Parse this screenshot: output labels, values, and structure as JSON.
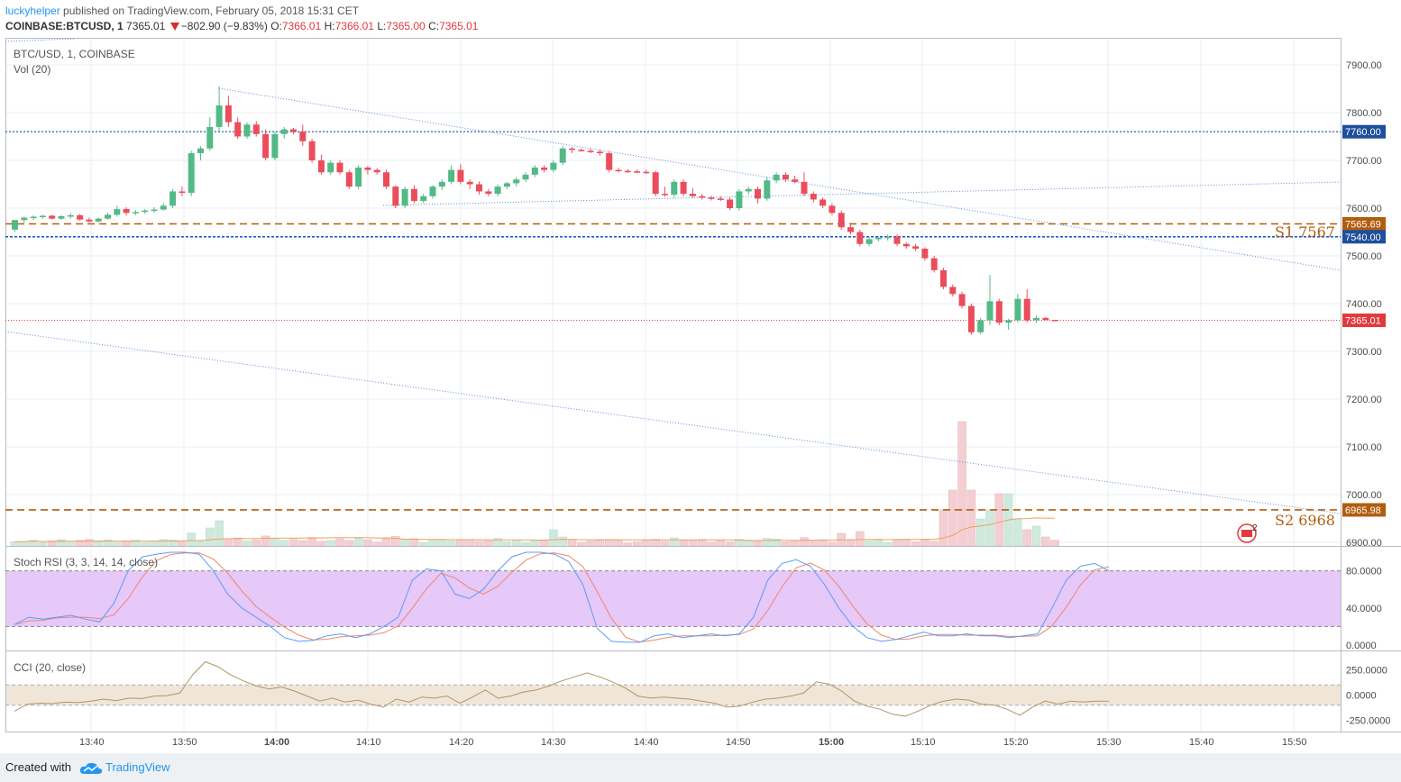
{
  "header": {
    "author": "luckyhelper",
    "published": "published on TradingView.com, February 05, 2018 15:31 CET",
    "symbol": "COINBASE:BTCUSD, 1",
    "last": "7365.01",
    "change": "−802.90 (−9.83%)",
    "o_label": "O:",
    "o": "7366.01",
    "h_label": "H:",
    "h": "7366.01",
    "l_label": "L:",
    "l": "7365.00",
    "c_label": "C:",
    "c": "7365.01"
  },
  "panes": {
    "main_title": "BTC/USD, 1, COINBASE",
    "vol_title": "Vol (20)",
    "stoch_title": "Stoch RSI (3, 3, 14, 14, close)",
    "cci_title": "CCI (20, close)"
  },
  "annotations": {
    "s1": "S1 7567",
    "s2": "S2 6968",
    "h_line_1": "7760.00",
    "h_line_2": "7540.00",
    "last_price_tag": "7365.01",
    "s1_tag": "7565.69",
    "s2_tag": "6965.98",
    "event_badge": "2"
  },
  "colors": {
    "up": "#53b987",
    "down": "#eb4d5c",
    "level_blue": "#1e4e9c",
    "level_orange": "#b25d0e",
    "trend": "#5b8dd6",
    "stoch_band": "#e6c8f9",
    "stoch_k": "#5b9cf6",
    "stoch_d": "#f0876a",
    "cci_line": "#b39464",
    "cci_band": "#f0e6d8"
  },
  "footer": {
    "created": "Created with",
    "brand": "TradingView"
  },
  "chart_data": {
    "type": "candlestick",
    "title": "BTC/USD, 1, COINBASE",
    "x_ticks": [
      "13:40",
      "13:50",
      "14:00",
      "14:10",
      "14:20",
      "14:30",
      "14:40",
      "14:50",
      "15:00",
      "15:10",
      "15:20",
      "15:30",
      "15:40",
      "15:50"
    ],
    "y_ticks": [
      "7900.00",
      "7800.00",
      "7700.00",
      "7600.00",
      "7500.00",
      "7400.00",
      "7300.00",
      "7200.00",
      "7100.00",
      "7000.00",
      "6900.00"
    ],
    "ylim": [
      6895,
      7935
    ],
    "horizontal_levels": [
      {
        "value": 7760,
        "style": "dotted",
        "color": "blue",
        "label": "7760.00"
      },
      {
        "value": 7540,
        "style": "dotted",
        "color": "blue",
        "label": "7540.00"
      },
      {
        "value": 7567,
        "style": "dashed",
        "color": "orange",
        "label": "S1 7567"
      },
      {
        "value": 6968,
        "style": "dashed",
        "color": "orange",
        "label": "S2 6968"
      },
      {
        "value": 7365.01,
        "style": "dotted",
        "color": "red",
        "label": "7365.01"
      }
    ],
    "candles": [
      [
        7555,
        7575,
        7550,
        7575
      ],
      [
        7575,
        7582,
        7570,
        7580
      ],
      [
        7580,
        7585,
        7575,
        7582
      ],
      [
        7582,
        7586,
        7578,
        7584
      ],
      [
        7584,
        7586,
        7576,
        7578
      ],
      [
        7578,
        7585,
        7575,
        7583
      ],
      [
        7583,
        7590,
        7578,
        7585
      ],
      [
        7585,
        7588,
        7574,
        7576
      ],
      [
        7576,
        7580,
        7570,
        7572
      ],
      [
        7572,
        7580,
        7570,
        7578
      ],
      [
        7578,
        7590,
        7576,
        7586
      ],
      [
        7586,
        7605,
        7582,
        7598
      ],
      [
        7598,
        7602,
        7585,
        7590
      ],
      [
        7590,
        7596,
        7585,
        7592
      ],
      [
        7592,
        7598,
        7588,
        7595
      ],
      [
        7595,
        7602,
        7590,
        7597
      ],
      [
        7597,
        7610,
        7595,
        7605
      ],
      [
        7605,
        7640,
        7600,
        7635
      ],
      [
        7635,
        7645,
        7625,
        7632
      ],
      [
        7632,
        7720,
        7625,
        7715
      ],
      [
        7715,
        7730,
        7700,
        7725
      ],
      [
        7725,
        7790,
        7720,
        7770
      ],
      [
        7770,
        7855,
        7760,
        7815
      ],
      [
        7815,
        7835,
        7770,
        7780
      ],
      [
        7780,
        7790,
        7745,
        7750
      ],
      [
        7750,
        7780,
        7745,
        7775
      ],
      [
        7775,
        7782,
        7750,
        7755
      ],
      [
        7755,
        7765,
        7700,
        7705
      ],
      [
        7705,
        7760,
        7700,
        7755
      ],
      [
        7755,
        7770,
        7745,
        7765
      ],
      [
        7765,
        7768,
        7755,
        7760
      ],
      [
        7760,
        7775,
        7730,
        7740
      ],
      [
        7740,
        7745,
        7695,
        7700
      ],
      [
        7700,
        7712,
        7670,
        7675
      ],
      [
        7675,
        7700,
        7670,
        7695
      ],
      [
        7695,
        7700,
        7670,
        7675
      ],
      [
        7675,
        7680,
        7640,
        7645
      ],
      [
        7645,
        7690,
        7640,
        7685
      ],
      [
        7685,
        7688,
        7670,
        7680
      ],
      [
        7680,
        7684,
        7670,
        7675
      ],
      [
        7675,
        7680,
        7640,
        7645
      ],
      [
        7645,
        7648,
        7600,
        7605
      ],
      [
        7605,
        7645,
        7600,
        7640
      ],
      [
        7640,
        7648,
        7610,
        7615
      ],
      [
        7615,
        7630,
        7610,
        7625
      ],
      [
        7625,
        7648,
        7620,
        7645
      ],
      [
        7645,
        7660,
        7638,
        7655
      ],
      [
        7655,
        7690,
        7650,
        7680
      ],
      [
        7680,
        7692,
        7650,
        7655
      ],
      [
        7655,
        7660,
        7640,
        7650
      ],
      [
        7650,
        7656,
        7628,
        7635
      ],
      [
        7635,
        7640,
        7625,
        7630
      ],
      [
        7630,
        7650,
        7625,
        7645
      ],
      [
        7645,
        7655,
        7640,
        7652
      ],
      [
        7652,
        7665,
        7645,
        7660
      ],
      [
        7660,
        7675,
        7655,
        7670
      ],
      [
        7670,
        7690,
        7665,
        7685
      ],
      [
        7685,
        7690,
        7675,
        7680
      ],
      [
        7680,
        7700,
        7675,
        7695
      ],
      [
        7695,
        7730,
        7690,
        7725
      ],
      [
        7725,
        7728,
        7715,
        7722
      ],
      [
        7722,
        7725,
        7718,
        7720
      ],
      [
        7720,
        7726,
        7715,
        7718
      ],
      [
        7718,
        7722,
        7710,
        7715
      ],
      [
        7715,
        7720,
        7675,
        7680
      ],
      [
        7680,
        7684,
        7675,
        7678
      ],
      [
        7678,
        7682,
        7674,
        7677
      ],
      [
        7677,
        7681,
        7673,
        7676
      ],
      [
        7676,
        7680,
        7672,
        7675
      ],
      [
        7675,
        7678,
        7625,
        7630
      ],
      [
        7630,
        7645,
        7624,
        7628
      ],
      [
        7628,
        7660,
        7622,
        7655
      ],
      [
        7655,
        7660,
        7625,
        7630
      ],
      [
        7630,
        7642,
        7622,
        7625
      ],
      [
        7625,
        7630,
        7618,
        7622
      ],
      [
        7622,
        7626,
        7616,
        7620
      ],
      [
        7620,
        7625,
        7615,
        7618
      ],
      [
        7618,
        7622,
        7596,
        7600
      ],
      [
        7600,
        7640,
        7595,
        7635
      ],
      [
        7635,
        7645,
        7628,
        7640
      ],
      [
        7640,
        7645,
        7610,
        7620
      ],
      [
        7620,
        7665,
        7615,
        7658
      ],
      [
        7658,
        7675,
        7652,
        7670
      ],
      [
        7670,
        7675,
        7655,
        7660
      ],
      [
        7660,
        7668,
        7652,
        7655
      ],
      [
        7655,
        7675,
        7625,
        7630
      ],
      [
        7630,
        7635,
        7612,
        7618
      ],
      [
        7618,
        7622,
        7600,
        7605
      ],
      [
        7605,
        7610,
        7585,
        7590
      ],
      [
        7590,
        7595,
        7555,
        7560
      ],
      [
        7560,
        7565,
        7545,
        7550
      ],
      [
        7550,
        7555,
        7520,
        7525
      ],
      [
        7525,
        7540,
        7520,
        7535
      ],
      [
        7535,
        7540,
        7530,
        7538
      ],
      [
        7538,
        7545,
        7532,
        7540
      ],
      [
        7540,
        7545,
        7520,
        7525
      ],
      [
        7525,
        7528,
        7515,
        7520
      ],
      [
        7520,
        7525,
        7510,
        7515
      ],
      [
        7515,
        7518,
        7490,
        7495
      ],
      [
        7495,
        7500,
        7465,
        7470
      ],
      [
        7470,
        7475,
        7430,
        7435
      ],
      [
        7435,
        7440,
        7415,
        7420
      ],
      [
        7420,
        7425,
        7390,
        7395
      ],
      [
        7395,
        7400,
        7335,
        7340
      ],
      [
        7340,
        7370,
        7335,
        7365
      ],
      [
        7365,
        7460,
        7355,
        7405
      ],
      [
        7405,
        7410,
        7355,
        7360
      ],
      [
        7360,
        7368,
        7345,
        7365
      ],
      [
        7365,
        7420,
        7360,
        7410
      ],
      [
        7410,
        7430,
        7360,
        7365
      ],
      [
        7365,
        7375,
        7360,
        7370
      ],
      [
        7370,
        7372,
        7365,
        7366
      ],
      [
        7366,
        7366,
        7365,
        7365
      ]
    ],
    "volume_sma_20": "line",
    "indicators": [
      {
        "name": "Stoch RSI (3, 3, 14, 14, close)",
        "y_ticks": [
          "80.0000",
          "40.0000",
          "0.0000"
        ],
        "band": [
          20,
          80
        ]
      },
      {
        "name": "CCI (20, close)",
        "y_ticks": [
          "250.0000",
          "0.0000",
          "-250.0000"
        ],
        "band": [
          -100,
          100
        ]
      }
    ]
  }
}
